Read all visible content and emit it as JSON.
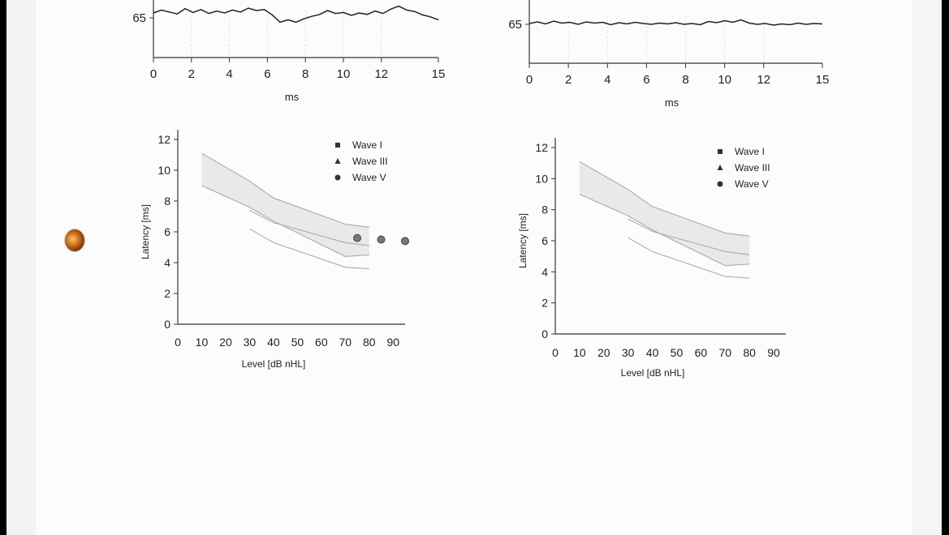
{
  "chart_data": [
    {
      "type": "line",
      "panel": "top-left",
      "y_tick_label": "65",
      "xlabel": "ms",
      "xticks": [
        "0",
        "2",
        "4",
        "6",
        "8",
        "10",
        "12",
        "15"
      ],
      "xlim": [
        0,
        15
      ],
      "series": [
        {
          "values": [
            1,
            1.6,
            1.2,
            0.8,
            1.9,
            1.1,
            1.7,
            0.9,
            1.4,
            1.0,
            1.6,
            1.2,
            2.0,
            1.5,
            1.7,
            0.6,
            -0.9,
            -0.4,
            -0.9,
            -0.2,
            0.3,
            0.7,
            1.5,
            0.9,
            1.1,
            0.5,
            1.0,
            0.7,
            1.4,
            0.9,
            1.8,
            2.4,
            1.6,
            1.3,
            0.6,
            0.2,
            -0.4
          ]
        }
      ]
    },
    {
      "type": "line",
      "panel": "top-right",
      "y_tick_label": "65",
      "xlabel": "ms",
      "xticks": [
        "0",
        "2",
        "4",
        "6",
        "8",
        "10",
        "12",
        "15"
      ],
      "xlim": [
        0,
        15
      ],
      "series": [
        {
          "values": [
            0.6,
            1.0,
            0.5,
            1.2,
            0.7,
            0.9,
            0.4,
            1.0,
            0.7,
            0.9,
            0.3,
            0.8,
            0.5,
            0.9,
            0.6,
            0.4,
            0.7,
            0.5,
            0.8,
            0.4,
            0.6,
            0.3,
            1.1,
            0.8,
            1.3,
            0.9,
            1.5,
            0.7,
            0.4,
            0.6,
            0.2,
            0.5,
            0.3,
            0.7,
            0.4,
            0.6,
            0.5
          ]
        }
      ]
    },
    {
      "type": "scatter",
      "panel": "bottom-left",
      "ylabel": "Latency [ms]",
      "xlabel": "Level [dB nHL]",
      "xlim": [
        0,
        95
      ],
      "ylim": [
        0,
        12
      ],
      "xticks": [
        "0",
        "10",
        "20",
        "30",
        "40",
        "50",
        "60",
        "70",
        "80",
        "90"
      ],
      "yticks": [
        "0",
        "2",
        "4",
        "6",
        "8",
        "10",
        "12"
      ],
      "legend": [
        "Wave I",
        "Wave III",
        "Wave V"
      ],
      "legend_position": "top-right",
      "band_upper": [
        [
          10,
          11.1
        ],
        [
          30,
          9.3
        ],
        [
          40,
          8.2
        ],
        [
          70,
          6.5
        ],
        [
          80,
          6.3
        ]
      ],
      "band_lower": [
        [
          10,
          9.0
        ],
        [
          30,
          7.6
        ],
        [
          40,
          6.7
        ],
        [
          70,
          4.4
        ],
        [
          80,
          4.5
        ]
      ],
      "inner_line_upper": [
        [
          30,
          7.4
        ],
        [
          40,
          6.6
        ],
        [
          70,
          5.3
        ],
        [
          80,
          5.1
        ]
      ],
      "inner_line_lower": [
        [
          30,
          6.2
        ],
        [
          40,
          5.3
        ],
        [
          70,
          3.7
        ],
        [
          80,
          3.6
        ]
      ],
      "wave_v": {
        "x": [
          75,
          85,
          95
        ],
        "y": [
          5.6,
          5.5,
          5.4
        ]
      }
    },
    {
      "type": "scatter",
      "panel": "bottom-right",
      "ylabel": "Latency [ms]",
      "xlabel": "Level [dB nHL]",
      "xlim": [
        0,
        95
      ],
      "ylim": [
        0,
        12
      ],
      "xticks": [
        "0",
        "10",
        "20",
        "30",
        "40",
        "50",
        "60",
        "70",
        "80",
        "90"
      ],
      "yticks": [
        "0",
        "2",
        "4",
        "6",
        "8",
        "10",
        "12"
      ],
      "legend": [
        "Wave I",
        "Wave III",
        "Wave V"
      ],
      "legend_position": "top-right",
      "band_upper": [
        [
          10,
          11.1
        ],
        [
          30,
          9.3
        ],
        [
          40,
          8.2
        ],
        [
          70,
          6.5
        ],
        [
          80,
          6.3
        ]
      ],
      "band_lower": [
        [
          10,
          9.0
        ],
        [
          30,
          7.6
        ],
        [
          40,
          6.7
        ],
        [
          70,
          4.4
        ],
        [
          80,
          4.5
        ]
      ],
      "inner_line_upper": [
        [
          30,
          7.4
        ],
        [
          40,
          6.6
        ],
        [
          70,
          5.3
        ],
        [
          80,
          5.1
        ]
      ],
      "inner_line_lower": [
        [
          30,
          6.2
        ],
        [
          40,
          5.3
        ],
        [
          70,
          3.7
        ],
        [
          80,
          3.6
        ]
      ]
    }
  ]
}
